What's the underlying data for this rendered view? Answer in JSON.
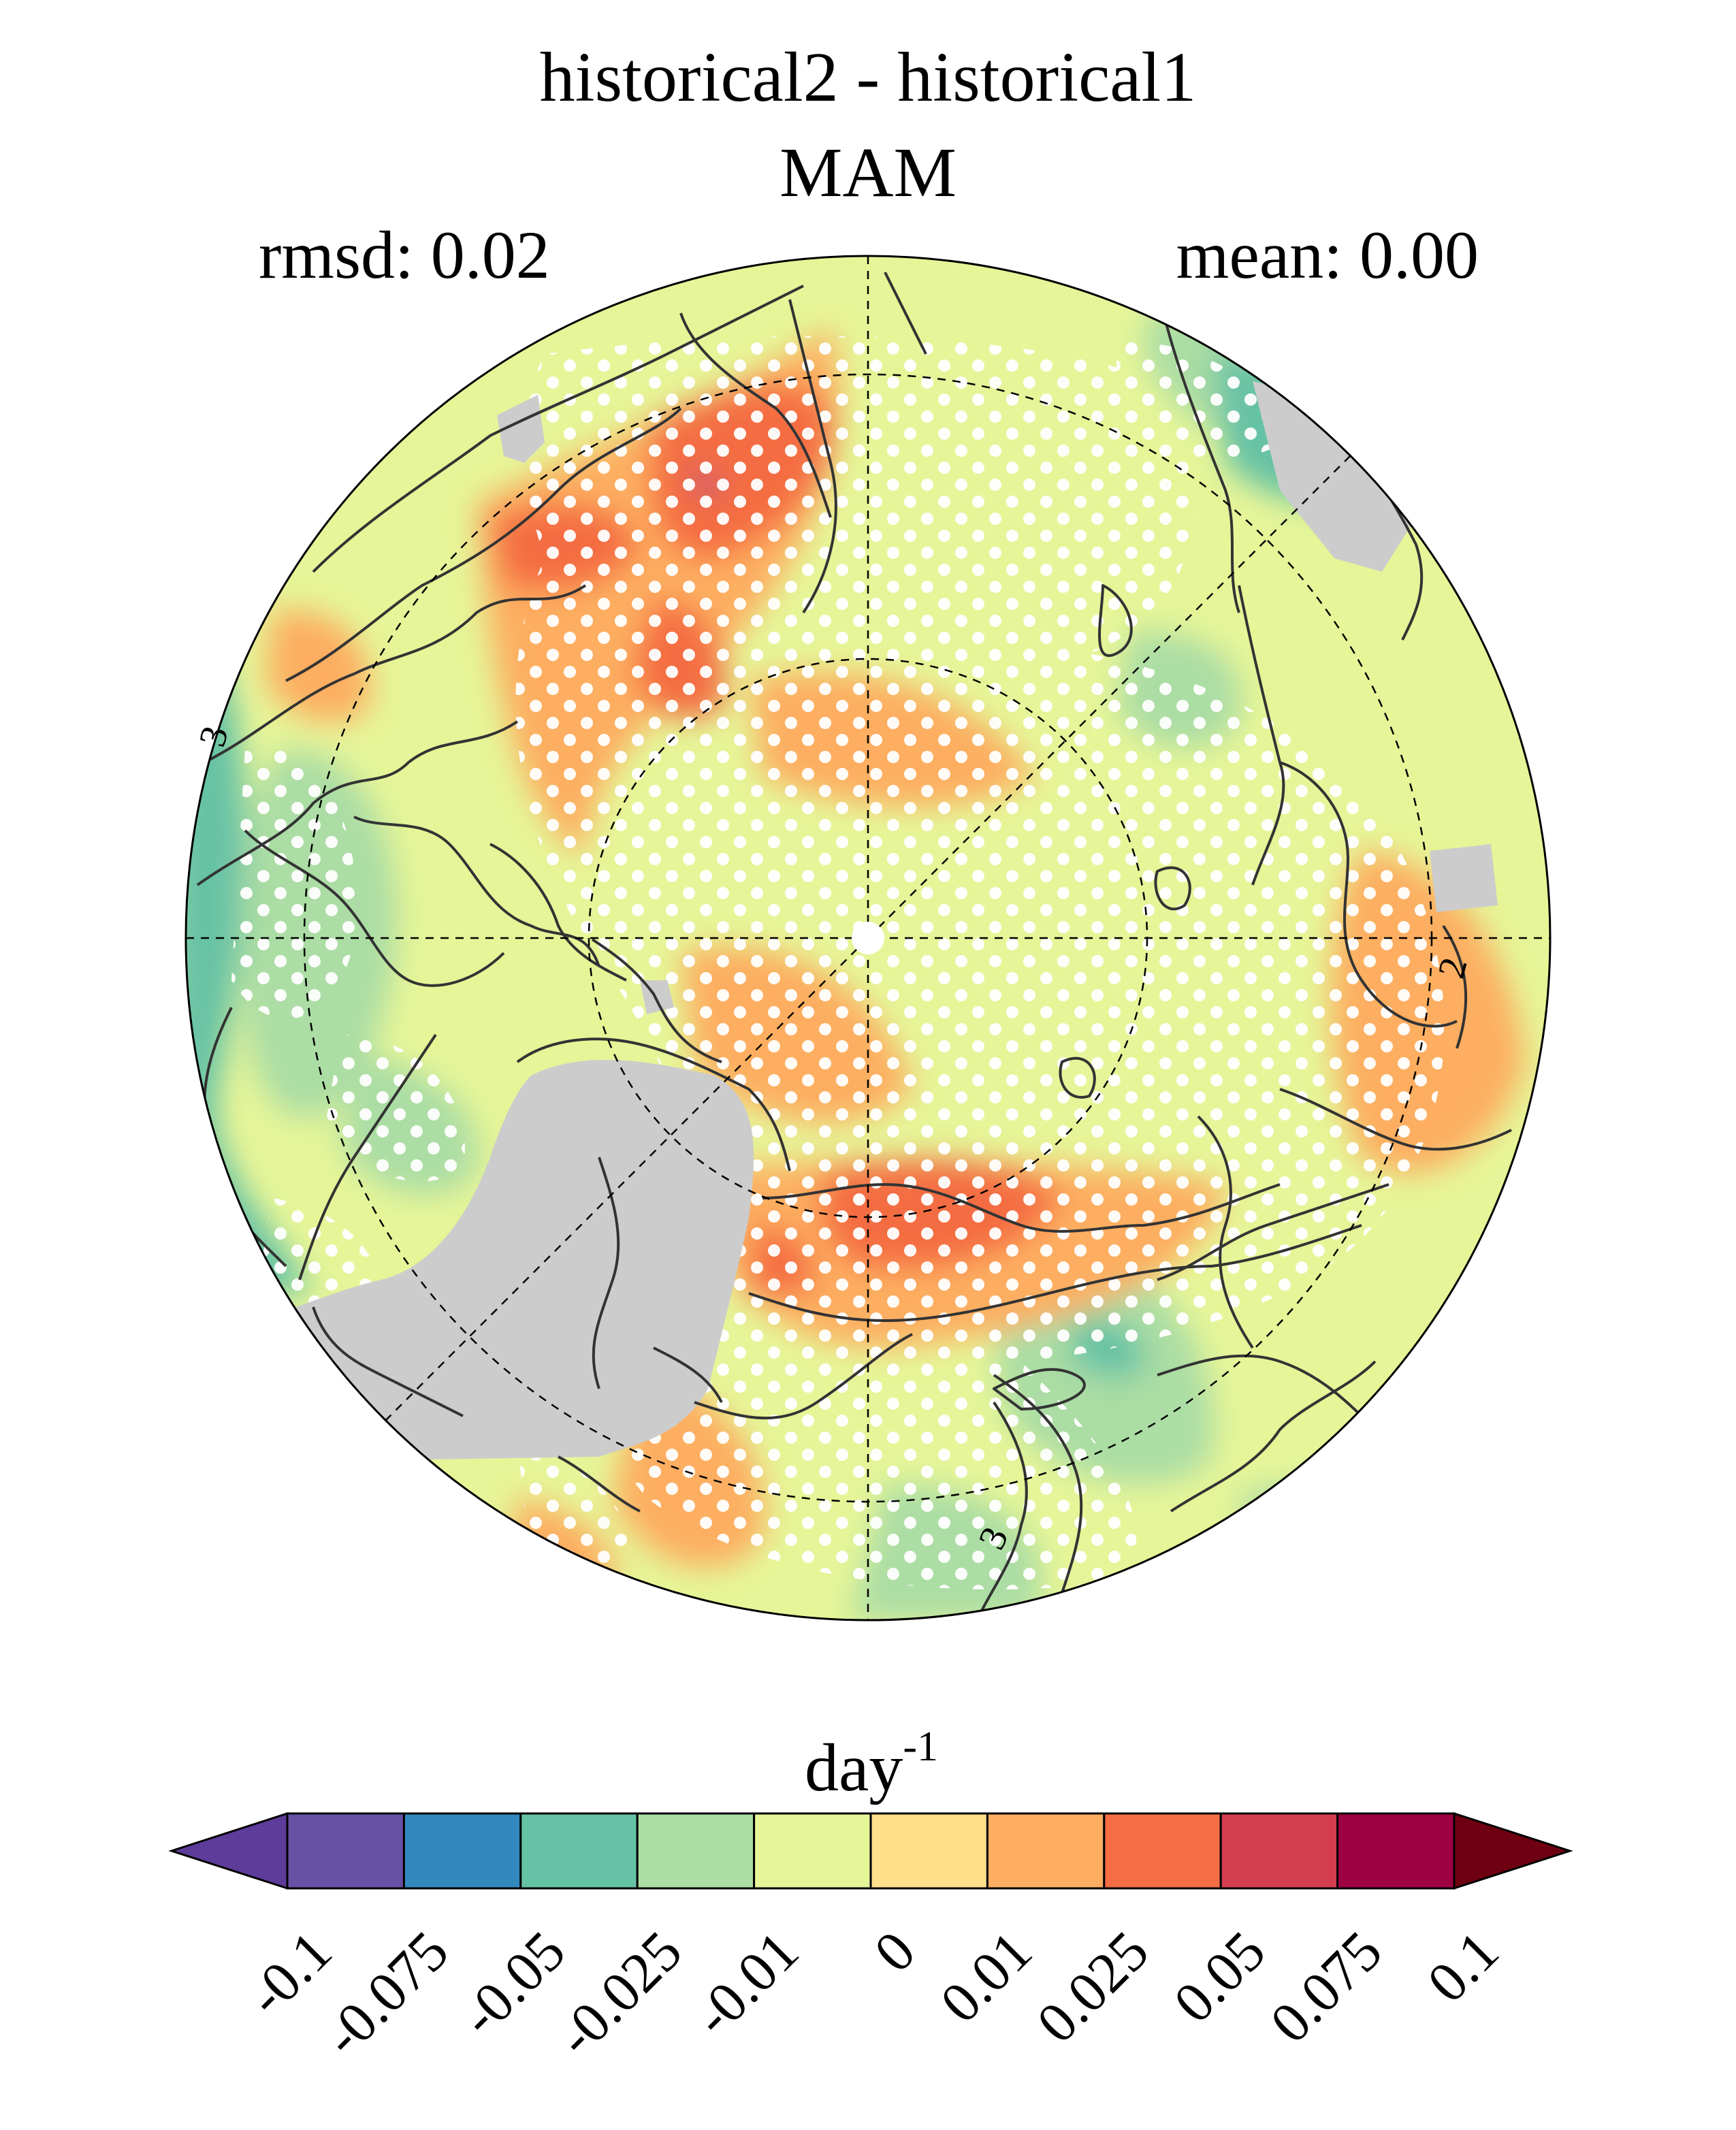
{
  "title": "historical2 - historical1",
  "season": "MAM",
  "stats": {
    "rmsd": "rmsd: 0.02",
    "mean": "mean: 0.00"
  },
  "colorbar": {
    "unit_base": "day",
    "unit_exp": "-1",
    "levels": [
      "-0.1",
      "-0.075",
      "-0.05",
      "-0.025",
      "-0.01",
      "0",
      "0.01",
      "0.025",
      "0.05",
      "0.075",
      "0.1"
    ],
    "colors": [
      "#5e3c99",
      "#6651a5",
      "#3288bd",
      "#66c2a5",
      "#abdda4",
      "#e6f598",
      "#fee08b",
      "#fdae61",
      "#f46d43",
      "#d53e4f",
      "#9e0142",
      "#6e0011"
    ]
  },
  "map": {
    "projection": "north-polar-stereographic",
    "land_mask_color": "#cccccc",
    "stippling": "white dots mark significant differences",
    "contour_labels": [
      "3",
      "2",
      "2",
      "3"
    ]
  },
  "colors": {
    "background": "#ffffff",
    "coastline": "#333333",
    "gridline": "#000000"
  }
}
